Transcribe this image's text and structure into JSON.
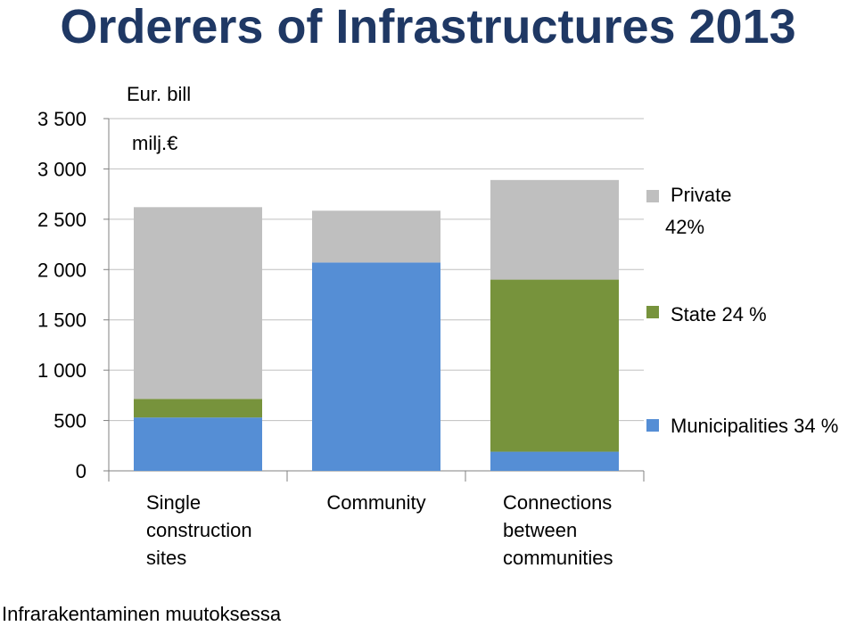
{
  "title": "Orderers of Infrastructures 2013",
  "unit_label_1": "Eur. bill",
  "unit_label_2": "milj.€",
  "footer": "Infrarakentaminen muutoksessa",
  "chart_data": {
    "type": "bar",
    "stacked": true,
    "title": "Orderers of Infrastructures 2013",
    "categories": [
      [
        "Single",
        "construction",
        "sites"
      ],
      [
        "Community"
      ],
      [
        "Connections",
        "between",
        "communities"
      ]
    ],
    "y_ticks": [
      "0",
      "500",
      "1 000",
      "1 500",
      "2 000",
      "2 500",
      "3 000",
      "3 500"
    ],
    "y_tick_values": [
      0,
      500,
      1000,
      1500,
      2000,
      2500,
      3000,
      3500
    ],
    "ylim": [
      0,
      3500
    ],
    "grid": true,
    "legend_position": "right",
    "series": [
      {
        "legend": [
          "Municipalities 34 %"
        ],
        "color": "#558ed5",
        "values": [
          530,
          2070,
          190
        ]
      },
      {
        "legend": [
          "State 24 %"
        ],
        "color": "#77933c",
        "values": [
          185,
          0,
          1710
        ]
      },
      {
        "legend": [
          "Private",
          "42%"
        ],
        "color": "#bfbfbf",
        "values": [
          1905,
          515,
          990
        ]
      }
    ]
  }
}
